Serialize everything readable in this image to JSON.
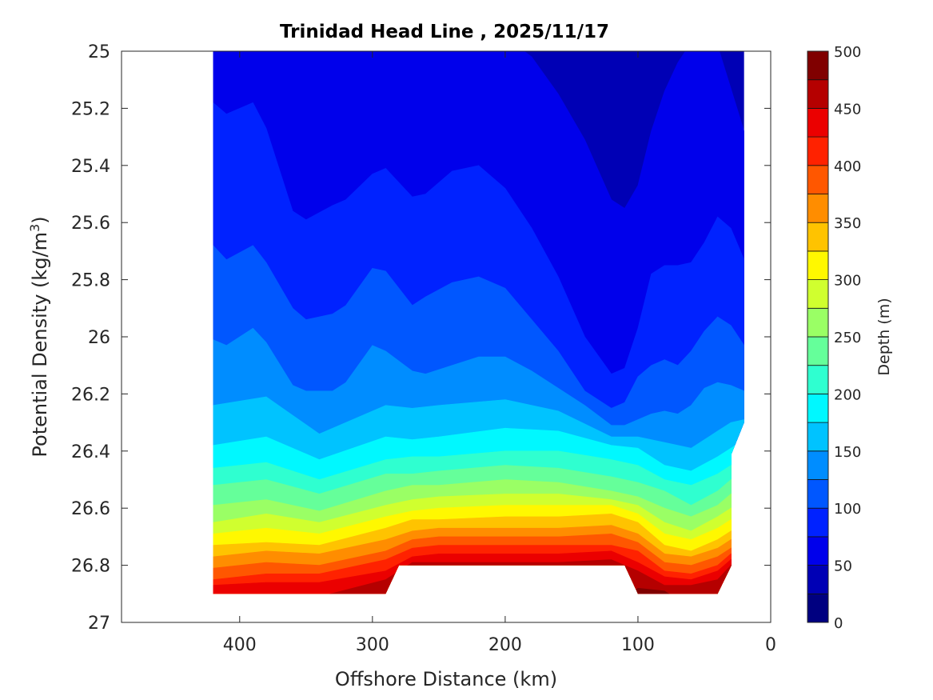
{
  "chart_data": {
    "type": "filled-contour",
    "title": "Trinidad Head Line , 2025/11/17",
    "xlabel": "Offshore Distance (km)",
    "ylabel": "Potential Density (kg/m",
    "ylabel_superscript": "3",
    "ylabel_suffix": ")",
    "xlim": [
      0,
      489
    ],
    "x_reversed": true,
    "ylim": [
      25,
      27
    ],
    "y_reversed": true,
    "xticks": [
      400,
      300,
      200,
      100,
      0
    ],
    "xtick_labels": [
      "400",
      "300",
      "200",
      "100",
      "0"
    ],
    "yticks": [
      25,
      25.2,
      25.4,
      25.6,
      25.8,
      26,
      26.2,
      26.4,
      26.6,
      26.8,
      27
    ],
    "ytick_labels": [
      "25",
      "25.2",
      "25.4",
      "25.6",
      "25.8",
      "26",
      "26.2",
      "26.4",
      "26.6",
      "26.8",
      "27"
    ],
    "colorbar": {
      "label": "Depth (m)",
      "range": [
        0,
        500
      ],
      "level_step": 25,
      "ticks": [
        0,
        50,
        100,
        150,
        200,
        250,
        300,
        350,
        400,
        450,
        500
      ],
      "tick_labels": [
        "0",
        "50",
        "100",
        "150",
        "200",
        "250",
        "300",
        "350",
        "400",
        "450",
        "500"
      ],
      "colormap": "jet"
    },
    "data_extent": [
      [
        420,
        25
      ],
      [
        20,
        25
      ],
      [
        20,
        26.3
      ],
      [
        29.5,
        26.41
      ],
      [
        29.5,
        26.8
      ],
      [
        40,
        26.9
      ],
      [
        100,
        26.9
      ],
      [
        110,
        26.8
      ],
      [
        280,
        26.8
      ],
      [
        290,
        26.9
      ],
      [
        420,
        26.9
      ]
    ],
    "base_band": [
      25,
      50
    ],
    "contours": [
      {
        "level": 50,
        "x": [
          420,
          410,
          390,
          380,
          360,
          350,
          330,
          320,
          300,
          290,
          270,
          260,
          240,
          220,
          200,
          180,
          160,
          140,
          120,
          110,
          100,
          90,
          80,
          70,
          60,
          50,
          40,
          30,
          20
        ],
        "density": [
          24.9,
          24.9,
          24.9,
          24.9,
          24.9,
          24.9,
          24.9,
          24.9,
          24.9,
          24.9,
          24.9,
          24.9,
          24.9,
          24.9,
          24.95,
          25.02,
          25.15,
          25.31,
          25.52,
          25.55,
          25.47,
          25.28,
          25.14,
          25.04,
          24.97,
          24.9,
          24.98,
          25.13,
          25.28
        ]
      },
      {
        "level": 75,
        "x": [
          420,
          410,
          390,
          380,
          360,
          350,
          330,
          320,
          300,
          290,
          270,
          260,
          240,
          220,
          200,
          180,
          160,
          140,
          120,
          110,
          100,
          90,
          80,
          70,
          60,
          50,
          40,
          30,
          20
        ],
        "density": [
          25.18,
          25.22,
          25.18,
          25.27,
          25.56,
          25.59,
          25.54,
          25.52,
          25.43,
          25.41,
          25.51,
          25.5,
          25.42,
          25.4,
          25.48,
          25.62,
          25.79,
          26.0,
          26.13,
          26.11,
          25.97,
          25.78,
          25.75,
          25.75,
          25.74,
          25.67,
          25.58,
          25.62,
          25.73
        ]
      },
      {
        "level": 100,
        "x": [
          420,
          410,
          390,
          380,
          360,
          350,
          330,
          320,
          300,
          290,
          270,
          260,
          240,
          220,
          200,
          180,
          160,
          140,
          120,
          110,
          100,
          90,
          80,
          70,
          60,
          50,
          40,
          30,
          20
        ],
        "density": [
          25.68,
          25.73,
          25.68,
          25.74,
          25.9,
          25.94,
          25.92,
          25.89,
          25.76,
          25.77,
          25.89,
          25.86,
          25.81,
          25.79,
          25.83,
          25.94,
          26.05,
          26.19,
          26.25,
          26.23,
          26.14,
          26.1,
          26.08,
          26.1,
          26.05,
          25.98,
          25.93,
          25.96,
          26.03
        ]
      },
      {
        "level": 125,
        "x": [
          420,
          410,
          390,
          380,
          360,
          350,
          330,
          320,
          300,
          290,
          270,
          260,
          240,
          220,
          200,
          180,
          160,
          140,
          120,
          110,
          100,
          90,
          80,
          70,
          60,
          50,
          40,
          30,
          20
        ],
        "density": [
          26.01,
          26.03,
          25.97,
          26.02,
          26.17,
          26.19,
          26.19,
          26.16,
          26.03,
          26.05,
          26.12,
          26.13,
          26.1,
          26.07,
          26.07,
          26.12,
          26.18,
          26.24,
          26.31,
          26.31,
          26.29,
          26.27,
          26.26,
          26.27,
          26.24,
          26.18,
          26.16,
          26.17,
          26.19
        ]
      },
      {
        "level": 150,
        "x": [
          420,
          380,
          340,
          290,
          270,
          250,
          200,
          160,
          120,
          100,
          80,
          60,
          40,
          30,
          20
        ],
        "density": [
          26.24,
          26.21,
          26.34,
          26.24,
          26.25,
          26.24,
          26.22,
          26.26,
          26.35,
          26.35,
          26.37,
          26.39,
          26.33,
          26.3,
          26.29
        ]
      },
      {
        "level": 175,
        "x": [
          420,
          380,
          340,
          290,
          270,
          250,
          200,
          160,
          120,
          100,
          80,
          60,
          40,
          30,
          20
        ],
        "density": [
          26.38,
          26.35,
          26.43,
          26.35,
          26.36,
          26.35,
          26.32,
          26.33,
          26.38,
          26.39,
          26.45,
          26.47,
          26.42,
          26.39,
          26.36
        ]
      },
      {
        "level": 200,
        "x": [
          420,
          380,
          340,
          290,
          270,
          250,
          200,
          160,
          120,
          100,
          80,
          60,
          40,
          30,
          20
        ],
        "density": [
          26.46,
          26.44,
          26.5,
          26.43,
          26.42,
          26.42,
          26.4,
          26.4,
          26.43,
          26.45,
          26.5,
          26.52,
          26.48,
          26.45,
          26.43
        ]
      },
      {
        "level": 225,
        "x": [
          420,
          380,
          340,
          290,
          270,
          250,
          200,
          160,
          120,
          100,
          80,
          60,
          40,
          30,
          20
        ],
        "density": [
          26.52,
          26.5,
          26.55,
          26.48,
          26.48,
          26.47,
          26.45,
          26.46,
          26.49,
          26.51,
          26.54,
          26.59,
          26.54,
          26.5,
          26.49
        ]
      },
      {
        "level": 250,
        "x": [
          420,
          380,
          340,
          290,
          270,
          250,
          200,
          160,
          120,
          100,
          80,
          60,
          40,
          30,
          20
        ],
        "density": [
          26.59,
          26.57,
          26.61,
          26.54,
          26.52,
          26.52,
          26.5,
          26.51,
          26.54,
          26.56,
          26.6,
          26.63,
          26.59,
          26.55,
          26.54
        ]
      },
      {
        "level": 275,
        "x": [
          420,
          380,
          340,
          290,
          270,
          250,
          200,
          160,
          120,
          100,
          80,
          60,
          40,
          30,
          20
        ],
        "density": [
          26.65,
          26.62,
          26.65,
          26.59,
          26.57,
          26.56,
          26.55,
          26.55,
          26.57,
          26.59,
          26.65,
          26.68,
          26.63,
          26.6,
          26.58
        ]
      },
      {
        "level": 300,
        "x": [
          420,
          380,
          340,
          290,
          270,
          250,
          200,
          160,
          120,
          100,
          80,
          60,
          40,
          30,
          20
        ],
        "density": [
          26.69,
          26.67,
          26.69,
          26.63,
          26.61,
          26.6,
          26.59,
          26.59,
          26.59,
          26.62,
          26.69,
          26.71,
          26.67,
          26.64,
          26.62
        ]
      },
      {
        "level": 325,
        "x": [
          420,
          380,
          340,
          290,
          270,
          250,
          200,
          160,
          120,
          100,
          80,
          60,
          40,
          30,
          20
        ],
        "density": [
          26.73,
          26.72,
          26.73,
          26.67,
          26.64,
          26.64,
          26.63,
          26.63,
          26.62,
          26.65,
          26.73,
          26.75,
          26.71,
          26.68,
          26.66
        ]
      },
      {
        "level": 350,
        "x": [
          420,
          380,
          340,
          290,
          270,
          250,
          200,
          160,
          120,
          100,
          80,
          60,
          40,
          30,
          20
        ],
        "density": [
          26.77,
          26.75,
          26.76,
          26.71,
          26.68,
          26.67,
          26.67,
          26.67,
          26.66,
          26.69,
          26.76,
          26.77,
          26.74,
          26.71,
          26.69
        ]
      },
      {
        "level": 375,
        "x": [
          420,
          380,
          340,
          290,
          270,
          250,
          200,
          160,
          120,
          100,
          80,
          60,
          40,
          30,
          20
        ],
        "density": [
          26.81,
          26.79,
          26.8,
          26.75,
          26.71,
          26.7,
          26.7,
          26.7,
          26.69,
          26.72,
          26.79,
          26.8,
          26.77,
          26.74,
          26.72
        ]
      },
      {
        "level": 400,
        "x": [
          420,
          380,
          340,
          290,
          270,
          250,
          200,
          160,
          120,
          100,
          80,
          60,
          40,
          30,
          20
        ],
        "density": [
          26.85,
          26.83,
          26.83,
          26.78,
          26.74,
          26.73,
          26.73,
          26.73,
          26.73,
          26.75,
          26.82,
          26.83,
          26.8,
          26.76,
          26.74
        ]
      },
      {
        "level": 425,
        "x": [
          420,
          380,
          340,
          290,
          270,
          250,
          200,
          160,
          120,
          100,
          80,
          60,
          40,
          30,
          20
        ],
        "density": [
          26.87,
          26.86,
          26.86,
          26.82,
          26.77,
          26.76,
          26.76,
          26.76,
          26.75,
          26.79,
          26.84,
          26.85,
          26.82,
          26.78,
          26.76
        ]
      },
      {
        "level": 450,
        "x": [
          420,
          380,
          340,
          290,
          270,
          250,
          200,
          160,
          120,
          100,
          80,
          60,
          40,
          30,
          20
        ],
        "density": [
          26.91,
          26.91,
          26.91,
          26.85,
          26.79,
          26.79,
          26.79,
          26.79,
          26.78,
          26.82,
          26.87,
          26.87,
          26.85,
          26.8,
          26.78
        ]
      },
      {
        "level": 475,
        "x": [
          420,
          380,
          340,
          290,
          270,
          250,
          200,
          160,
          120,
          100,
          80,
          60,
          40,
          30,
          20
        ],
        "density": [
          26.95,
          26.95,
          26.95,
          26.95,
          26.95,
          26.95,
          26.95,
          26.95,
          26.95,
          26.88,
          26.89,
          26.95,
          26.95,
          26.95,
          26.95
        ]
      }
    ]
  }
}
